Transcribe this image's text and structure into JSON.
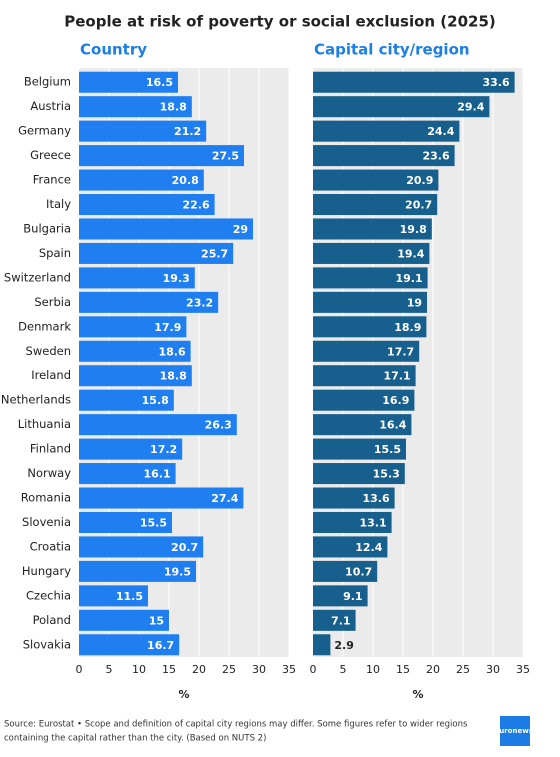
{
  "title": "People at risk of poverty or social exclusion (2025)",
  "source": [
    "Source: Eurostat • Scope and definition of capital city regions may differ. Some figures refer to wider regions",
    "containing the capital rather than the city. (Based on NUTS 2)"
  ],
  "logo": "euronews.",
  "chart_data": [
    {
      "type": "bar",
      "title": "Country",
      "color": "#1f7ff0",
      "categories": [
        "Belgium",
        "Austria",
        "Germany",
        "Greece",
        "France",
        "Italy",
        "Bulgaria",
        "Spain",
        "Switzerland",
        "Serbia",
        "Denmark",
        "Sweden",
        "Ireland",
        "Netherlands",
        "Lithuania",
        "Finland",
        "Norway",
        "Romania",
        "Slovenia",
        "Croatia",
        "Hungary",
        "Czechia",
        "Poland",
        "Slovakia"
      ],
      "values": [
        16.5,
        18.8,
        21.2,
        27.5,
        20.8,
        22.6,
        29,
        25.7,
        19.3,
        23.2,
        17.9,
        18.6,
        18.8,
        15.8,
        26.3,
        17.2,
        16.1,
        27.4,
        15.5,
        20.7,
        19.5,
        11.5,
        15,
        16.7
      ],
      "xlim": [
        0,
        35
      ],
      "xticks": [
        0,
        5,
        10,
        15,
        20,
        25,
        30,
        35
      ],
      "xlabel": "%",
      "grid": true
    },
    {
      "type": "bar",
      "title": "Capital city/region",
      "color": "#175f8c",
      "values": [
        33.6,
        29.4,
        24.4,
        23.6,
        20.9,
        20.7,
        19.8,
        19.4,
        19.1,
        19,
        18.9,
        17.7,
        17.1,
        16.9,
        16.4,
        15.5,
        15.3,
        13.6,
        13.1,
        12.4,
        10.7,
        9.1,
        7.1,
        2.9
      ],
      "xlim": [
        0,
        35
      ],
      "xticks": [
        0,
        5,
        10,
        15,
        20,
        25,
        30,
        35
      ],
      "xlabel": "%",
      "grid": true
    }
  ]
}
